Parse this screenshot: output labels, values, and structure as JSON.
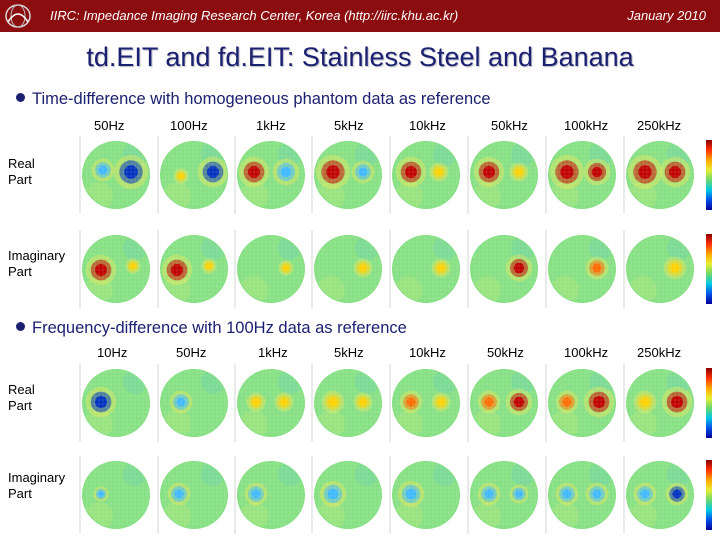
{
  "header": {
    "title": "IIRC: Impedance Imaging Research Center, Korea (http://iirc.khu.ac.kr)",
    "date": "January 2010",
    "logo_icon": "iirc-logo-icon"
  },
  "slide_title": "td.EIT and fd.EIT: Stainless Steel and Banana",
  "sections": [
    {
      "heading": "Time-difference with homogeneous phantom data as reference",
      "frequencies": [
        "50Hz",
        "100Hz",
        "1kHz",
        "5kHz",
        "10kHz",
        "50kHz",
        "100kHz",
        "250kHz"
      ],
      "rows": [
        {
          "label_line1": "Real",
          "label_line2": "Part"
        },
        {
          "label_line1": "Imaginary",
          "label_line2": "Part"
        }
      ]
    },
    {
      "heading": "Frequency-difference with 100Hz data as reference",
      "frequencies": [
        "10Hz",
        "50Hz",
        "1kHz",
        "5kHz",
        "10kHz",
        "50kHz",
        "100kHz",
        "250kHz"
      ],
      "rows": [
        {
          "label_line1": "Real",
          "label_line2": "Part"
        },
        {
          "label_line1": "Imaginary",
          "label_line2": "Part"
        }
      ]
    }
  ],
  "colors": {
    "header_bg": "#8b0d0f",
    "title_text": "#1b2170",
    "bullet": "#1b2170",
    "background_field": "#86e083"
  }
}
